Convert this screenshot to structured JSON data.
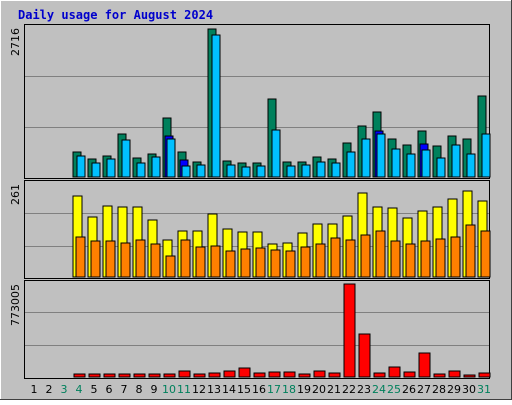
{
  "chart_data": {
    "type": "bar",
    "title": "Daily usage for August 2024",
    "categories": [
      "1",
      "2",
      "3",
      "4",
      "5",
      "6",
      "7",
      "8",
      "9",
      "10",
      "11",
      "12",
      "13",
      "14",
      "15",
      "16",
      "17",
      "18",
      "19",
      "20",
      "21",
      "22",
      "23",
      "24",
      "25",
      "26",
      "27",
      "28",
      "29",
      "30",
      "31"
    ],
    "weekend_days": [
      "3",
      "4",
      "10",
      "11",
      "17",
      "18",
      "24",
      "25",
      "31"
    ],
    "panels": [
      {
        "id": "hits",
        "ymax_label": "2716",
        "ylim": [
          0,
          2716
        ],
        "series": [
          {
            "values": [
              null,
              null,
              null,
              455,
              330,
              390,
              780,
              340,
              430,
              1080,
              450,
              270,
              2716,
              300,
              260,
              250,
              1440,
              270,
              280,
              370,
              330,
              620,
              940,
              1200,
              700,
              580,
              840,
              560,
              750,
              690,
              1480
            ]
          },
          {
            "values": [
              null,
              null,
              null,
              null,
              null,
              null,
              null,
              null,
              null,
              750,
              320,
              null,
              null,
              null,
              null,
              null,
              null,
              null,
              null,
              null,
              null,
              null,
              null,
              850,
              null,
              null,
              610,
              null,
              null,
              null,
              null
            ]
          },
          {
            "values": [
              null,
              null,
              null,
              380,
              260,
              330,
              670,
              250,
              360,
              700,
              210,
              220,
              2600,
              220,
              190,
              200,
              870,
              210,
              220,
              270,
              250,
              460,
              700,
              790,
              510,
              430,
              490,
              350,
              580,
              430,
              790
            ]
          }
        ]
      },
      {
        "id": "kbytes",
        "ymax_label": "261",
        "ylim": [
          0,
          261
        ],
        "series": [
          {
            "values": [
              null,
              null,
              null,
              228,
              168,
              200,
              196,
              196,
              160,
              103,
              129,
              128,
              177,
              135,
              126,
              126,
              94,
              96,
              124,
              150,
              150,
              170,
              236,
              196,
              194,
              166,
              184,
              196,
              220,
              240,
              212
            ]
          },
          {
            "values": [
              null,
              null,
              null,
              112,
              102,
              102,
              96,
              104,
              94,
              60,
              104,
              84,
              86,
              72,
              78,
              80,
              76,
              74,
              84,
              94,
              110,
              104,
              118,
              130,
              102,
              94,
              102,
              106,
              112,
              146,
              128
            ]
          }
        ]
      },
      {
        "id": "volume",
        "ymax_label": "773005",
        "ylim": [
          0,
          773005
        ],
        "series": [
          {
            "values": [
              null,
              null,
              null,
              24000,
              28000,
              24000,
              28000,
              24000,
              26000,
              26000,
              52000,
              28000,
              34000,
              50000,
              78000,
              30000,
              38000,
              38000,
              26000,
              46000,
              32000,
              773005,
              355000,
              34000,
              84000,
              38000,
              196000,
              28000,
              46000,
              14000,
              30000
            ]
          }
        ]
      }
    ]
  }
}
